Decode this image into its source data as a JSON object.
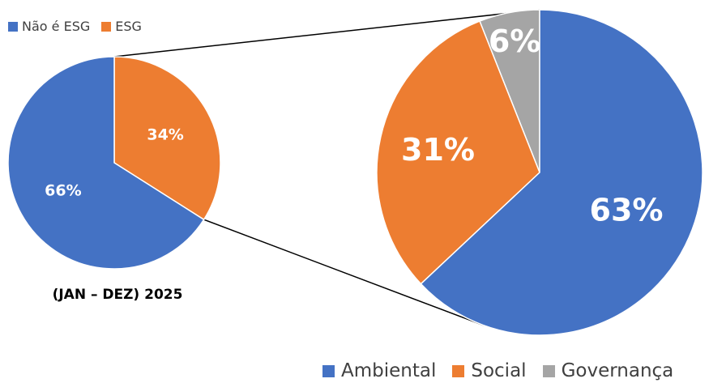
{
  "colors": {
    "blue": "#4472C4",
    "orange": "#ED7D31",
    "gray": "#A5A5A5",
    "connector": "#000000",
    "label": "#ffffff"
  },
  "chart_data": [
    {
      "type": "pie",
      "slices": [
        {
          "name": "Não é ESG",
          "value": 66,
          "label": "66%",
          "color": "#4472C4"
        },
        {
          "name": "ESG",
          "value": 34,
          "label": "34%",
          "color": "#ED7D31"
        }
      ],
      "title": "(JAN – DEZ) 2025",
      "legend_position": "top-left"
    },
    {
      "type": "pie",
      "slices": [
        {
          "name": "Ambiental",
          "value": 63,
          "label": "63%",
          "color": "#4472C4"
        },
        {
          "name": "Social",
          "value": 31,
          "label": "31%",
          "color": "#ED7D31"
        },
        {
          "name": "Governança",
          "value": 6,
          "label": "6%",
          "color": "#A5A5A5"
        }
      ],
      "legend_position": "bottom-right"
    }
  ]
}
